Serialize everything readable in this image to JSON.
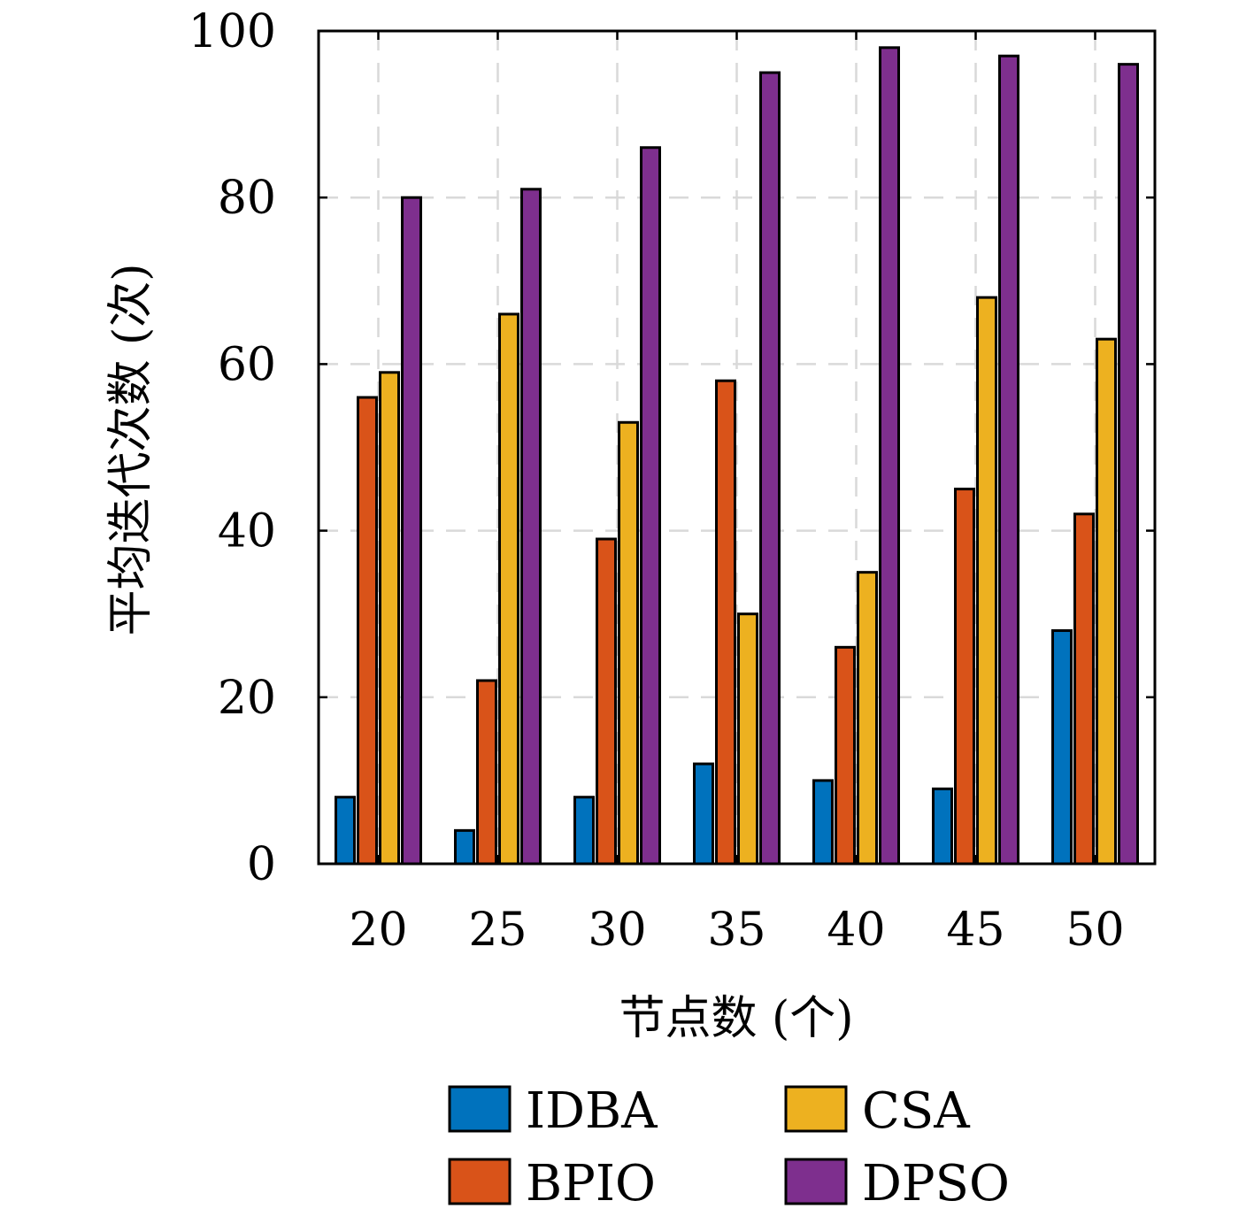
{
  "chart_data": {
    "type": "bar",
    "title": "",
    "xlabel": "节点数 (个)",
    "ylabel": "平均迭代次数 (次)",
    "categories": [
      "20",
      "25",
      "30",
      "35",
      "40",
      "45",
      "50"
    ],
    "ylim": [
      0,
      100
    ],
    "yticks": [
      "0",
      "20",
      "40",
      "60",
      "80",
      "100"
    ],
    "grid": true,
    "legend_position": "bottom",
    "series": [
      {
        "name": "IDBA",
        "color": "#0072BD",
        "values": [
          8,
          4,
          8,
          12,
          10,
          9,
          28
        ]
      },
      {
        "name": "BPIO",
        "color": "#D95319",
        "values": [
          56,
          22,
          39,
          58,
          26,
          45,
          42
        ]
      },
      {
        "name": "CSA",
        "color": "#EDB120",
        "values": [
          59,
          66,
          53,
          30,
          35,
          68,
          63
        ]
      },
      {
        "name": "DPSO",
        "color": "#7E2F8E",
        "values": [
          80,
          81,
          86,
          95,
          98,
          97,
          96
        ]
      }
    ]
  }
}
